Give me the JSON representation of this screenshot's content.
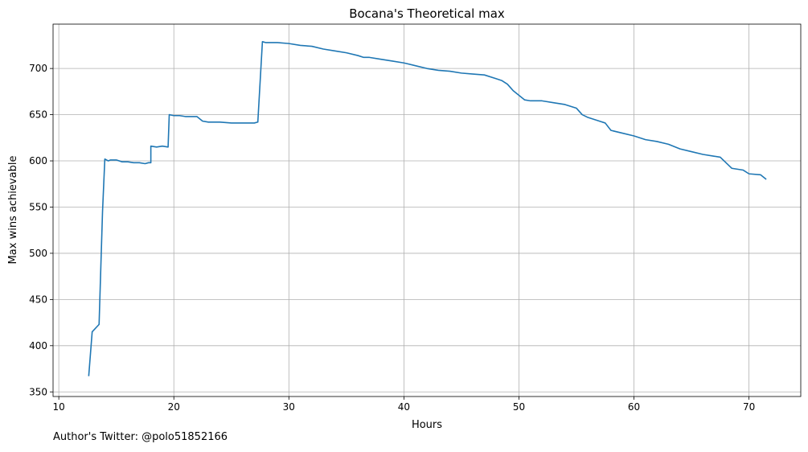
{
  "chart_data": {
    "type": "line",
    "title": "Bocana's Theoretical max",
    "xlabel": "Hours",
    "ylabel": "Max wins achievable",
    "xlim": [
      9.5,
      74.5
    ],
    "ylim": [
      345,
      748
    ],
    "xticks": [
      10,
      20,
      30,
      40,
      50,
      60,
      70
    ],
    "yticks": [
      350,
      400,
      450,
      500,
      550,
      600,
      650,
      700
    ],
    "grid": true,
    "series": [
      {
        "color": "#1f77b4",
        "x": [
          12.6,
          12.9,
          13.5,
          13.8,
          14.0,
          14.3,
          14.5,
          15.0,
          15.5,
          16.0,
          16.5,
          17.0,
          17.5,
          17.8,
          18.0,
          18.0,
          18.5,
          19.0,
          19.5,
          19.6,
          20.0,
          20.5,
          21.0,
          21.5,
          22.0,
          22.5,
          23.0,
          23.5,
          24.0,
          25.0,
          26.0,
          26.5,
          27.0,
          27.3,
          27.7,
          28.0,
          29.0,
          30.0,
          31.0,
          32.0,
          33.0,
          34.0,
          35.0,
          36.0,
          36.5,
          37.0,
          38.0,
          39.0,
          40.0,
          41.0,
          42.0,
          43.0,
          44.0,
          45.0,
          46.0,
          47.0,
          48.0,
          48.5,
          49.0,
          49.5,
          50.0,
          50.5,
          51.0,
          52.0,
          53.0,
          54.0,
          55.0,
          55.5,
          56.0,
          57.0,
          57.5,
          58.0,
          59.0,
          60.0,
          61.0,
          62.0,
          63.0,
          64.0,
          65.0,
          66.0,
          67.0,
          67.5,
          68.0,
          68.5,
          69.0,
          69.5,
          70.0,
          71.0,
          71.5
        ],
        "y": [
          367,
          415,
          423,
          545,
          602,
          600,
          601,
          601,
          599,
          599,
          598,
          598,
          597,
          598,
          598,
          616,
          615,
          616,
          615,
          650,
          649,
          649,
          648,
          648,
          648,
          643,
          642,
          642,
          642,
          641,
          641,
          641,
          641,
          642,
          729,
          728,
          728,
          727,
          725,
          724,
          721,
          719,
          717,
          714,
          712,
          712,
          710,
          708,
          706,
          703,
          700,
          698,
          697,
          695,
          694,
          693,
          689,
          687,
          683,
          676,
          671,
          666,
          665,
          665,
          663,
          661,
          657,
          650,
          647,
          643,
          641,
          633,
          630,
          627,
          623,
          621,
          618,
          613,
          610,
          607,
          605,
          604,
          598,
          592,
          591,
          590,
          586,
          585,
          580
        ]
      }
    ],
    "footnote": "Author's Twitter: @polo51852166"
  }
}
